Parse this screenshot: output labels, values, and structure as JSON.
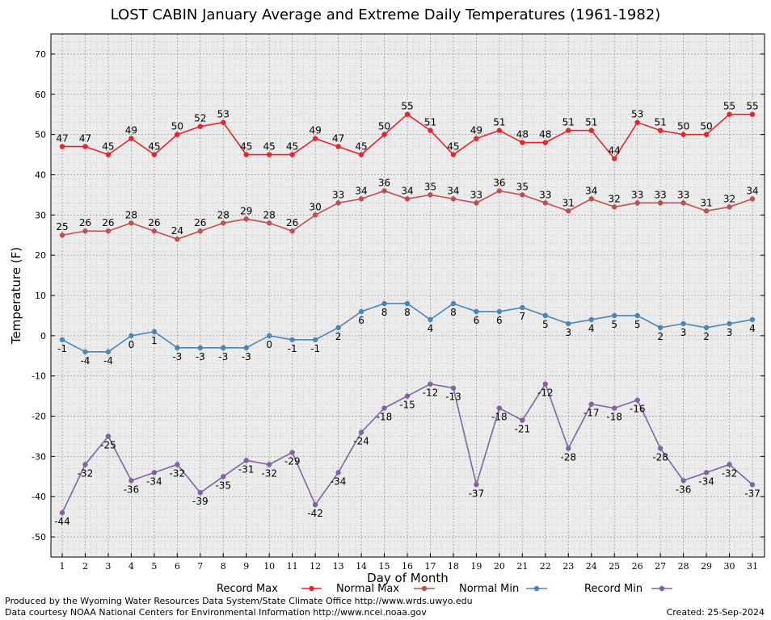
{
  "chart_data": {
    "type": "line",
    "title": "LOST CABIN January Average and Extreme Daily Temperatures (1961-1982)",
    "xlabel": "Day of Month",
    "ylabel": "Temperature (F)",
    "x": [
      1,
      2,
      3,
      4,
      5,
      6,
      7,
      8,
      9,
      10,
      11,
      12,
      13,
      14,
      15,
      16,
      17,
      18,
      19,
      20,
      21,
      22,
      23,
      24,
      25,
      26,
      27,
      28,
      29,
      30,
      31
    ],
    "xlim": [
      1,
      31
    ],
    "ylim": [
      -55,
      75
    ],
    "yticks": [
      -50,
      -40,
      -30,
      -20,
      -10,
      0,
      10,
      20,
      30,
      40,
      50,
      60,
      70
    ],
    "grid": true,
    "legend_position": "bottom",
    "series": [
      {
        "name": "Record Max",
        "color": "#e8232a",
        "values": [
          47,
          47,
          45,
          49,
          45,
          50,
          52,
          53,
          45,
          45,
          45,
          49,
          47,
          45,
          50,
          55,
          51,
          45,
          49,
          51,
          48,
          48,
          51,
          51,
          44,
          53,
          51,
          50,
          50,
          55,
          55
        ]
      },
      {
        "name": "Normal Max",
        "color": "#c0504d",
        "values": [
          25,
          26,
          26,
          28,
          26,
          24,
          26,
          28,
          29,
          28,
          26,
          30,
          33,
          34,
          36,
          34,
          35,
          34,
          33,
          36,
          35,
          33,
          31,
          34,
          32,
          33,
          33,
          33,
          31,
          32,
          34
        ]
      },
      {
        "name": "Normal Min",
        "color": "#4a86b8",
        "values": [
          -1,
          -4,
          -4,
          0,
          1,
          -3,
          -3,
          -3,
          -3,
          0,
          -1,
          -1,
          2,
          6,
          8,
          8,
          4,
          8,
          6,
          6,
          7,
          5,
          3,
          4,
          5,
          5,
          2,
          3,
          2,
          3,
          4
        ]
      },
      {
        "name": "Record Min",
        "color": "#8064a2",
        "values": [
          -44,
          -32,
          -25,
          -36,
          -34,
          -32,
          -39,
          -35,
          -31,
          -32,
          -29,
          -42,
          -34,
          -24,
          -18,
          -15,
          -12,
          -13,
          -37,
          -18,
          -21,
          -12,
          -28,
          -17,
          -18,
          -16,
          -28,
          -36,
          -34,
          -32,
          -37
        ]
      }
    ]
  },
  "footer": {
    "produced_by": "Produced by the Wyoming Water Resources Data System/State Climate Office http://www.wrds.uwyo.edu",
    "data_courtesy": "Data courtesy NOAA National Centers for Environmental Information http://www.ncei.noaa.gov",
    "created": "Created:  25-Sep-2024"
  }
}
